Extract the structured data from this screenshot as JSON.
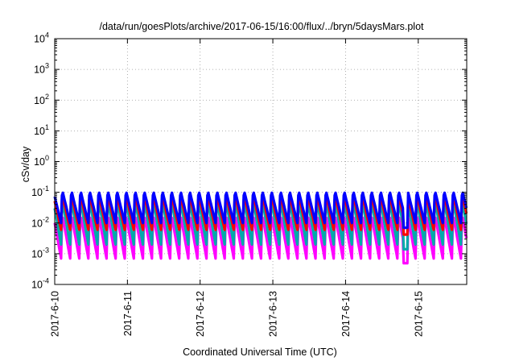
{
  "chart_data": {
    "type": "line",
    "title": "/data/run/goesPlots/archive/2017-06-15/16:00/flux/../bryn/5daysMars.plot",
    "xlabel": "Coordinated Universal Time (UTC)",
    "ylabel": "cSv/day",
    "x_ticks": [
      "2017-6-10",
      "2017-6-11",
      "2017-6-12",
      "2017-6-13",
      "2017-6-14",
      "2017-6-15"
    ],
    "xlim": [
      "2017-06-10T00:00",
      "2017-06-15T16:00"
    ],
    "yscale": "log",
    "ylim": [
      0.0001,
      10000
    ],
    "y_ticks": [
      {
        "base": "10",
        "exp": "-4"
      },
      {
        "base": "10",
        "exp": "-3"
      },
      {
        "base": "10",
        "exp": "-2"
      },
      {
        "base": "10",
        "exp": "-1"
      },
      {
        "base": "10",
        "exp": "0"
      },
      {
        "base": "10",
        "exp": "1"
      },
      {
        "base": "10",
        "exp": "2"
      },
      {
        "base": "10",
        "exp": "3"
      },
      {
        "base": "10",
        "exp": "4"
      }
    ],
    "grid": true,
    "pattern": {
      "period_hours": 3,
      "gap": {
        "from": "2017-06-14T19:00",
        "to": "2017-06-14T20:30"
      }
    },
    "series": [
      {
        "color": "#ff00ff",
        "peak": 0.02,
        "trough": 0.0007
      },
      {
        "color": "#00aaaa",
        "peak": 0.06,
        "trough": 0.002
      },
      {
        "color": "#ff0000",
        "peak": 0.09,
        "trough": 0.006
      },
      {
        "color": "#0000ff",
        "peak": 0.12,
        "trough": 0.01
      }
    ]
  }
}
